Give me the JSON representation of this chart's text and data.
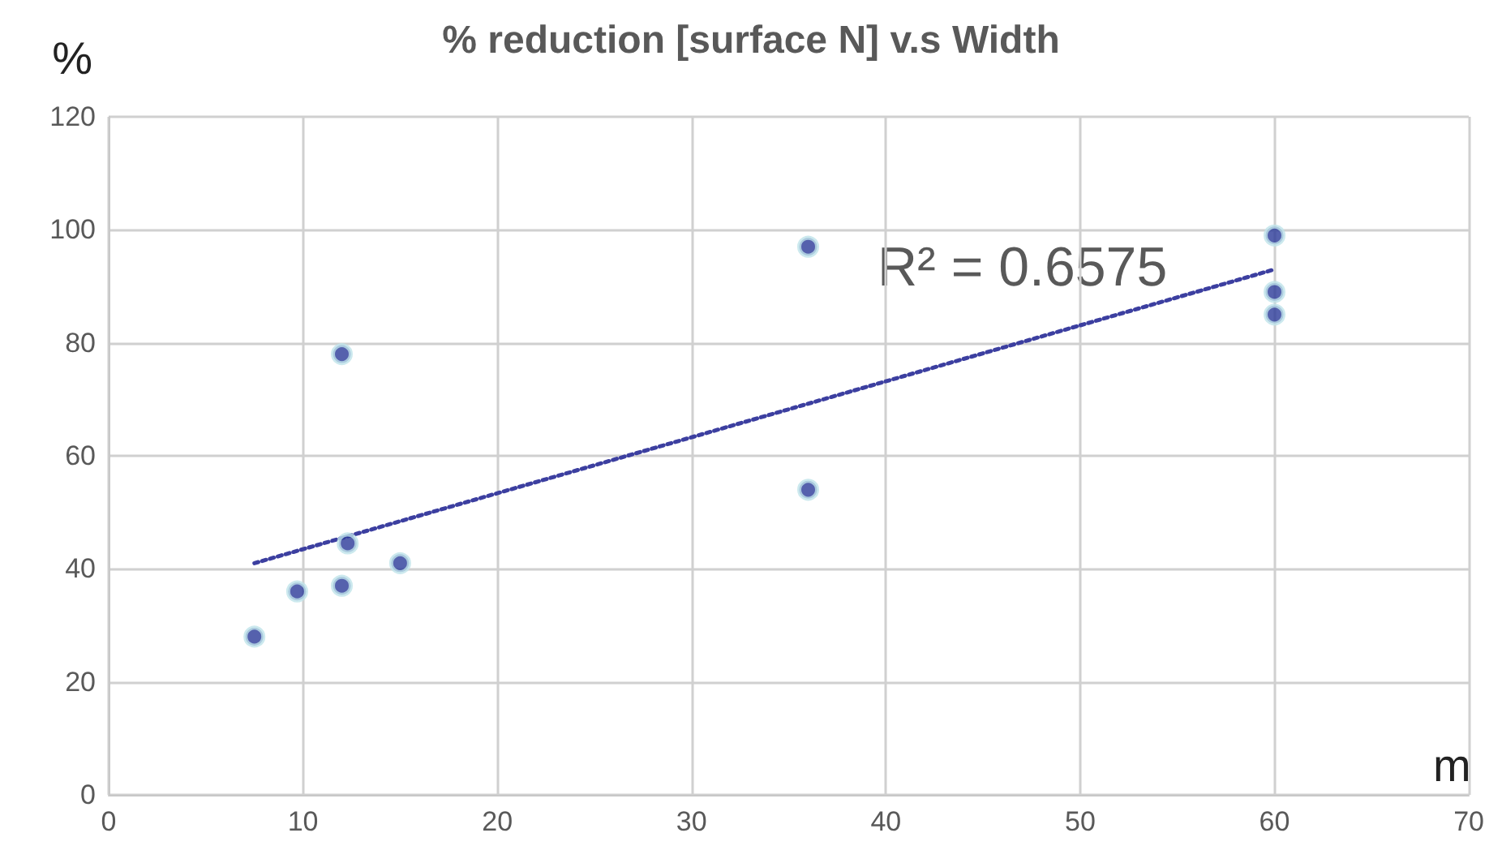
{
  "chart_data": {
    "type": "scatter",
    "title": "% reduction [surface N] v.s Width",
    "xlabel": "m",
    "ylabel": "%",
    "xlim": [
      0,
      70
    ],
    "xticks": [
      0,
      10,
      20,
      30,
      40,
      50,
      60,
      70
    ],
    "ylim": [
      0,
      120
    ],
    "yticks": [
      0,
      20,
      40,
      60,
      80,
      100,
      120
    ],
    "grid": true,
    "marker": "circle",
    "annotations": [
      "R² = 0.6575"
    ],
    "series": [
      {
        "color": "#2b3a98",
        "x": [
          7.5,
          9.7,
          12,
          12,
          12.3,
          15,
          36,
          36,
          60,
          60,
          60
        ],
        "values": [
          28,
          36,
          78,
          37,
          44.5,
          41,
          97,
          54,
          99,
          89,
          85
        ]
      },
      {
        "type": "line",
        "color": "#3c3fa0",
        "line_style": "dotted",
        "marker": "none",
        "x": [
          7.5,
          60
        ],
        "values": [
          41,
          93
        ]
      }
    ]
  }
}
